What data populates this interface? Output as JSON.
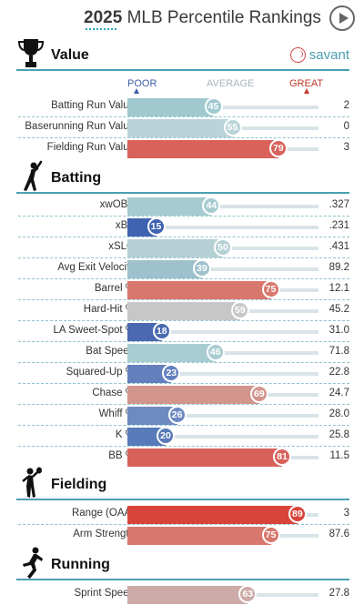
{
  "header": {
    "year": "2025",
    "title": "MLB Percentile Rankings"
  },
  "scale": {
    "poor": "POOR",
    "average": "AVERAGE",
    "great": "GREAT"
  },
  "brand": {
    "name": "savant"
  },
  "colors": {
    "accent": "#4b9fb0",
    "poor": "#3b5ea8",
    "great": "#c0392b"
  },
  "sections": {
    "value": {
      "title": "Value",
      "icon": "trophy-icon",
      "rows": [
        {
          "label": "Batting Run Value",
          "percentile": 45,
          "value": "2",
          "color": "#9fc9cf"
        },
        {
          "label": "Baserunning Run Value",
          "percentile": 55,
          "value": "0",
          "color": "#b9d4d8"
        },
        {
          "label": "Fielding Run Value",
          "percentile": 79,
          "value": "3",
          "color": "#d9625b"
        }
      ]
    },
    "batting": {
      "title": "Batting",
      "icon": "batter-icon",
      "rows": [
        {
          "label": "xwOBA",
          "percentile": 44,
          "value": ".327",
          "color": "#a7cbd1"
        },
        {
          "label": "xBA",
          "percentile": 15,
          "value": ".231",
          "color": "#3f63b0"
        },
        {
          "label": "xSLG",
          "percentile": 50,
          "value": ".431",
          "color": "#b5d0d5"
        },
        {
          "label": "Avg Exit Velocity",
          "percentile": 39,
          "value": "89.2",
          "color": "#9ec1cd"
        },
        {
          "label": "Barrel %",
          "percentile": 75,
          "value": "12.1",
          "color": "#d8776d"
        },
        {
          "label": "Hard-Hit %",
          "percentile": 59,
          "value": "45.2",
          "color": "#c7c7c7"
        },
        {
          "label": "LA Sweet-Spot %",
          "percentile": 18,
          "value": "31.0",
          "color": "#4b69b0"
        },
        {
          "label": "Bat Speed",
          "percentile": 46,
          "value": "71.8",
          "color": "#a9ccd2"
        },
        {
          "label": "Squared-Up %",
          "percentile": 23,
          "value": "22.8",
          "color": "#6380bd"
        },
        {
          "label": "Chase %",
          "percentile": 69,
          "value": "24.7",
          "color": "#d2958c"
        },
        {
          "label": "Whiff %",
          "percentile": 26,
          "value": "28.0",
          "color": "#6f8ac1"
        },
        {
          "label": "K %",
          "percentile": 20,
          "value": "25.8",
          "color": "#577ab8"
        },
        {
          "label": "BB %",
          "percentile": 81,
          "value": "11.5",
          "color": "#d8615a"
        }
      ]
    },
    "fielding": {
      "title": "Fielding",
      "icon": "fielder-icon",
      "rows": [
        {
          "label": "Range (OAA)",
          "percentile": 89,
          "value": "3",
          "color": "#d9443a"
        },
        {
          "label": "Arm Strength",
          "percentile": 75,
          "value": "87.6",
          "color": "#d8776d"
        }
      ]
    },
    "running": {
      "title": "Running",
      "icon": "runner-icon",
      "rows": [
        {
          "label": "Sprint Speed",
          "percentile": 63,
          "value": "27.8",
          "color": "#ccaaa7"
        }
      ]
    }
  }
}
